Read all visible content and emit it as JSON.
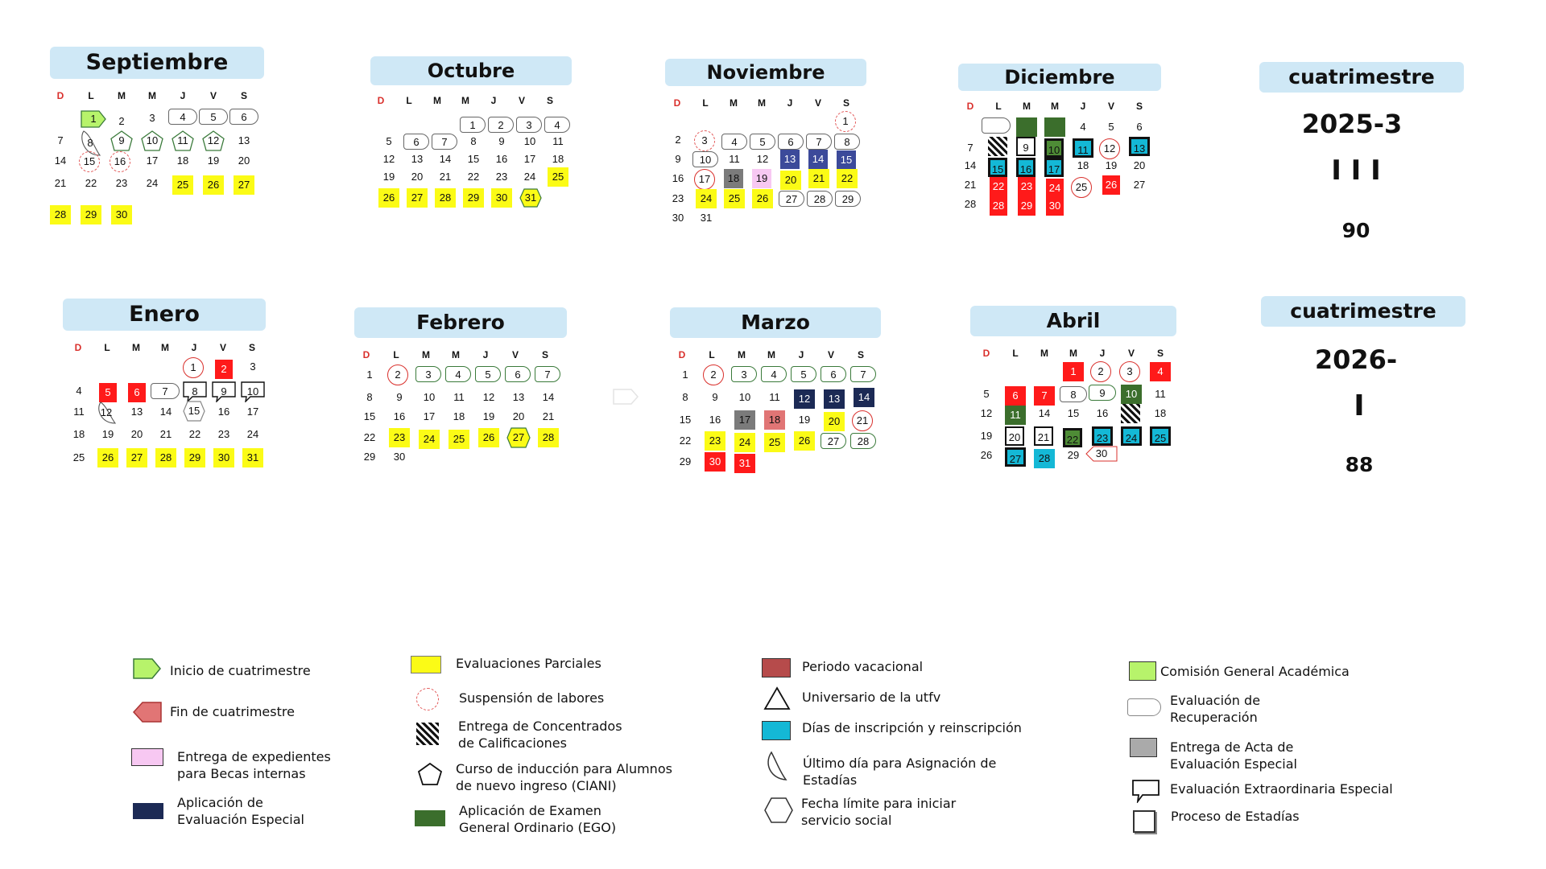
{
  "weekdays": [
    "D",
    "L",
    "M",
    "M",
    "J",
    "V",
    "S"
  ],
  "months": {
    "sep": {
      "title": "Septiembre"
    },
    "oct": {
      "title": "Octubre"
    },
    "nov": {
      "title": "Noviembre"
    },
    "dic": {
      "title": "Diciembre"
    },
    "ene": {
      "title": "Enero"
    },
    "feb": {
      "title": "Febrero"
    },
    "mar": {
      "title": "Marzo"
    },
    "abr": {
      "title": "Abril"
    }
  },
  "summary_1": {
    "title": "cuatrimestre",
    "period": "2025-3",
    "roman": "I I I",
    "days": "90"
  },
  "summary_2": {
    "title": "cuatrimestre",
    "period": "2026-",
    "roman": "I",
    "days": "88"
  },
  "legend": {
    "inicio": "Inicio de cuatrimestre",
    "fin": "Fin de cuatrimestre",
    "expedientes": "Entrega de expedientes para Becas internas",
    "aplicacion_especial": "Aplicación de Evaluación Especial",
    "parciales": "Evaluaciones Parciales",
    "suspension": "Suspensión de labores",
    "concentrados": "Entrega de Concentrados de Calificaciones",
    "induccion": "Curso de inducción para Alumnos de nuevo ingreso (CIANI)",
    "ego": "Aplicación de Examen General Ordinario (EGO)",
    "vacacional": "Periodo vacacional",
    "universario": "Universario de la utfv",
    "inscripcion": "Días de inscripción y reinscripción",
    "estadias_asig": "Último día para Asignación de Estadías",
    "servicio_social": "Fecha límite para iniciar servicio social",
    "comision": "Comisión General Académica",
    "recuperacion": "Evaluación de Recuperación",
    "acta": "Entrega de Acta de Evaluación Especial",
    "extraordinaria": "Evaluación Extraordinaria Especial",
    "proceso_estadias": "Proceso de Estadías"
  },
  "colors": {
    "header_bg": "#cfe8f6",
    "parciales": "#fbfb16",
    "suspension": "#d9302c",
    "vacacional": "#b64b4b",
    "inscripcion": "#14b8d6",
    "comision": "#b7f36b",
    "ego": "#3b6e2c",
    "aplicacion_especial": "#1c2a55"
  }
}
